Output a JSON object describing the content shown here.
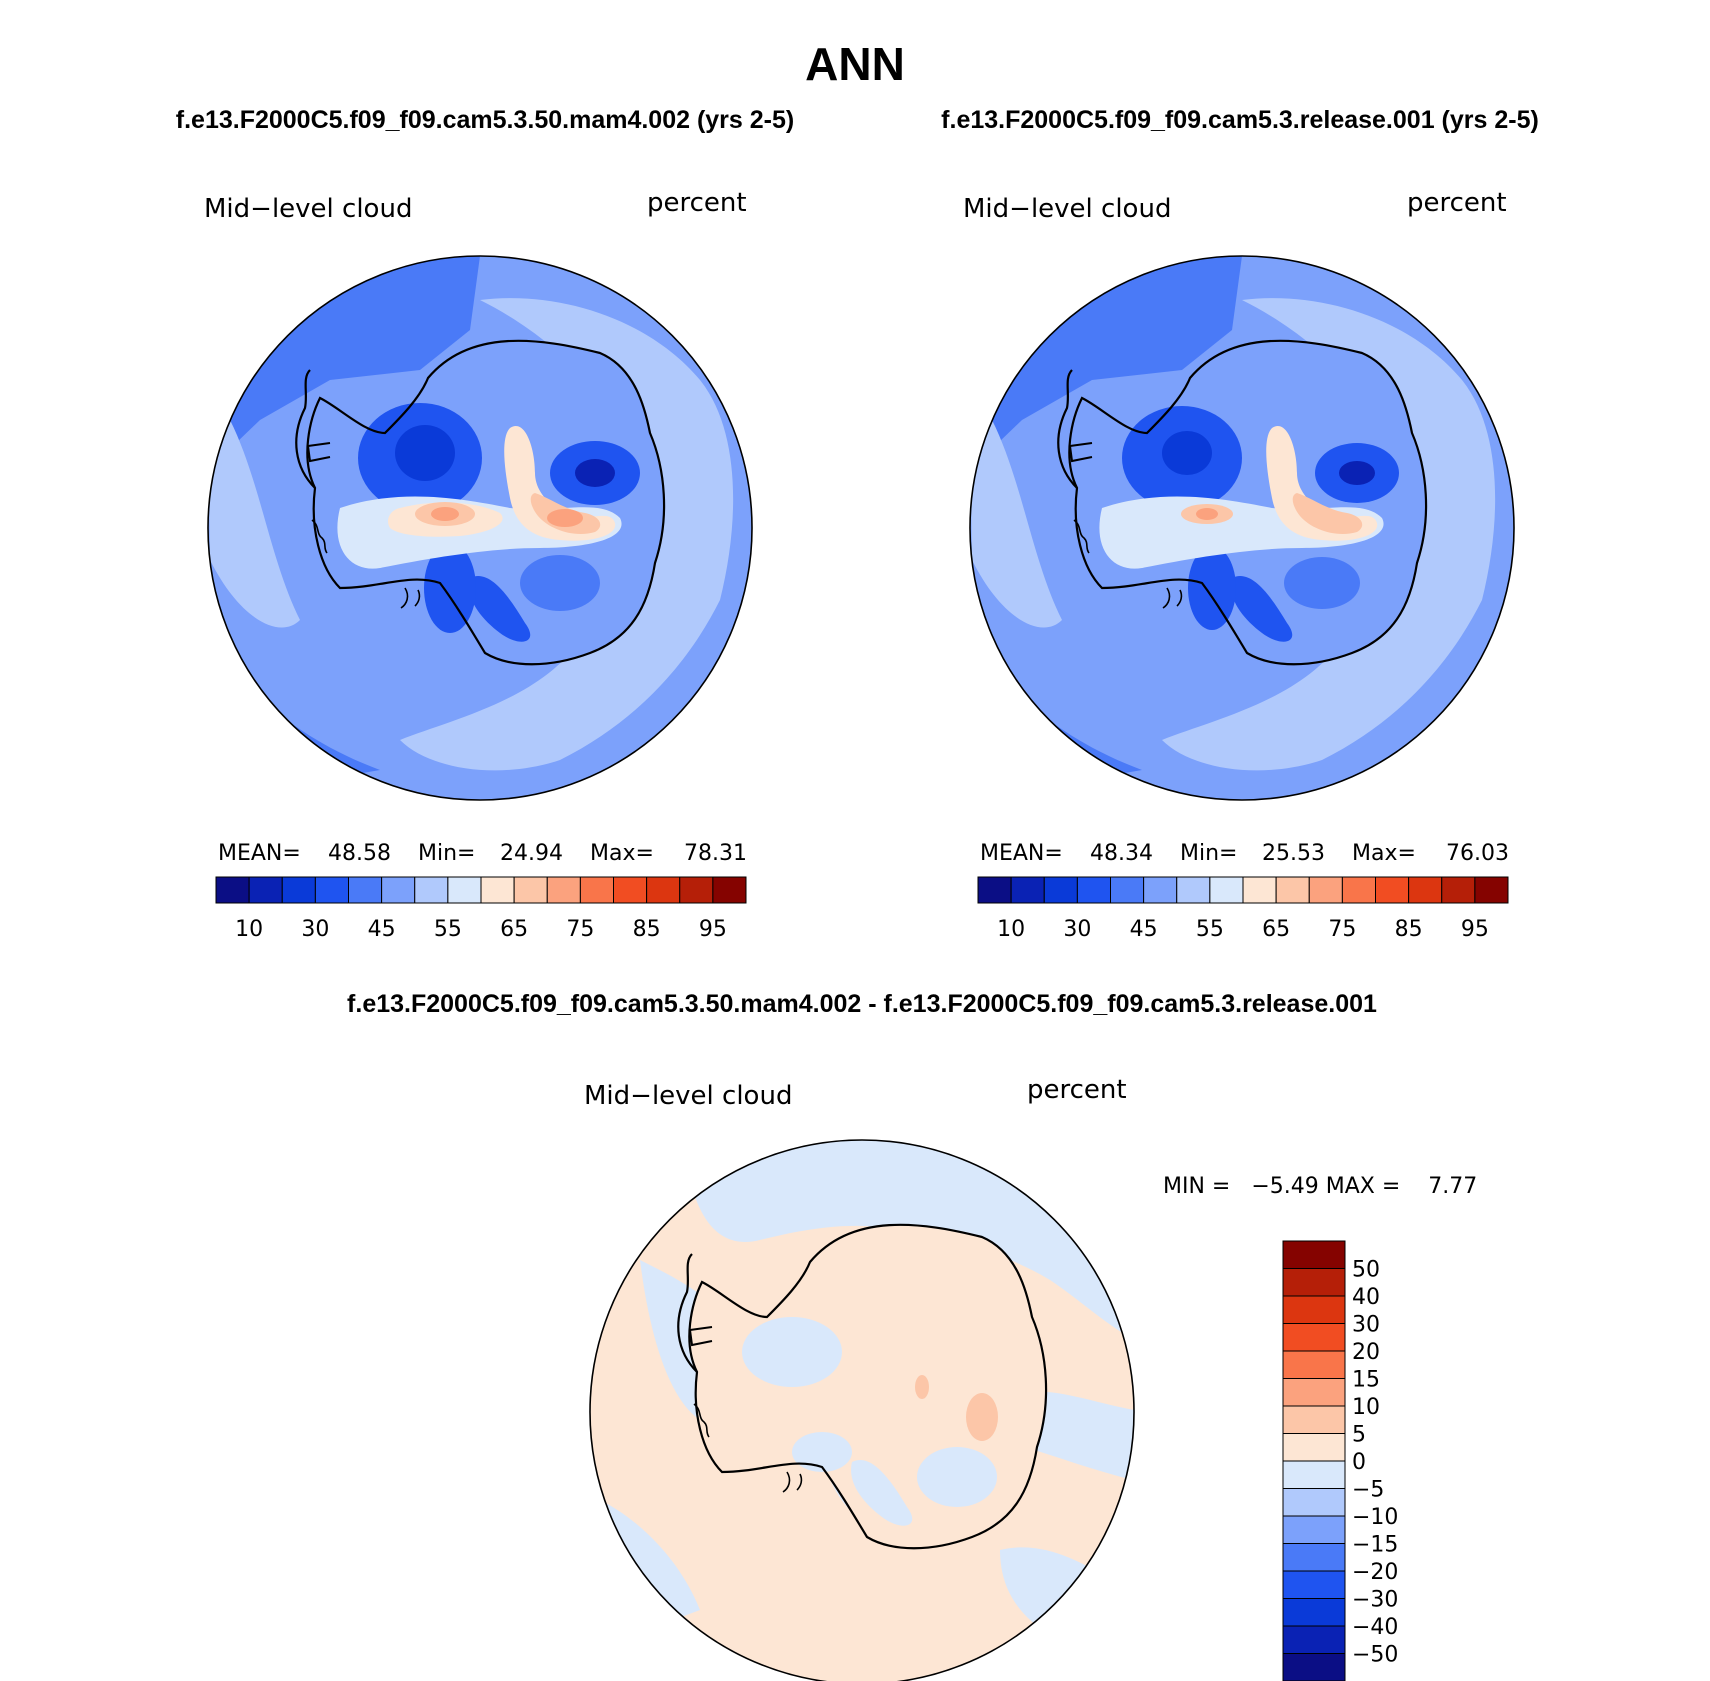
{
  "page": {
    "title": "ANN",
    "case1": "f.e13.F2000C5.f09_f09.cam5.3.50.mam4.002 (yrs 2-5)",
    "case2": "f.e13.F2000C5.f09_f09.cam5.3.release.001 (yrs 2-5)",
    "diff_title": "f.e13.F2000C5.f09_f09.cam5.3.50.mam4.002 - f.e13.F2000C5.f09_f09.cam5.3.release.001"
  },
  "panels": [
    {
      "variable": "Mid−level cloud",
      "units": "percent",
      "mean_label": "MEAN=",
      "mean": "48.58",
      "min_label": "Min=",
      "min": "24.94",
      "max_label": "Max=",
      "max": "78.31"
    },
    {
      "variable": "Mid−level cloud",
      "units": "percent",
      "mean_label": "MEAN=",
      "mean": "48.34",
      "min_label": "Min=",
      "min": "25.53",
      "max_label": "Max=",
      "max": "76.03"
    },
    {
      "variable": "Mid−level cloud",
      "units": "percent",
      "minmax_text": "MIN =   −5.49 MAX =    7.77"
    }
  ],
  "colorbar_top": {
    "colors": [
      "#0b0e85",
      "#0a22b4",
      "#0a3ad8",
      "#1f54f0",
      "#4a7af7",
      "#7ca1fb",
      "#b0c9fc",
      "#d9e8fb",
      "#fde6d4",
      "#fcc6a8",
      "#fba27e",
      "#f9754a",
      "#f14d22",
      "#dc3610",
      "#b51f08",
      "#850300"
    ],
    "tick_labels": [
      "10",
      "30",
      "45",
      "55",
      "65",
      "75",
      "85",
      "95"
    ]
  },
  "colorbar_diff": {
    "colors": [
      "#850300",
      "#b51f08",
      "#dc3610",
      "#f14d22",
      "#f9754a",
      "#fba27e",
      "#fcc6a8",
      "#fde6d4",
      "#d9e8fb",
      "#b0c9fc",
      "#7ca1fb",
      "#4a7af7",
      "#1f54f0",
      "#0a3ad8",
      "#0a22b4",
      "#0b0e85"
    ],
    "tick_labels": [
      "50",
      "40",
      "30",
      "20",
      "15",
      "10",
      "5",
      "0",
      "−5",
      "−10",
      "−15",
      "−20",
      "−30",
      "−40",
      "−50"
    ]
  }
}
